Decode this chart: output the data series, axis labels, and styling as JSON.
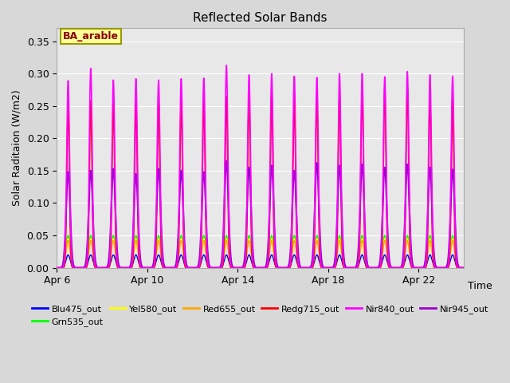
{
  "title": "Reflected Solar Bands",
  "xlabel": "Time",
  "ylabel": "Solar Raditaion (W/m2)",
  "annotation": "BA_arable",
  "annotation_color": "#8B0000",
  "annotation_bg": "#FFFF99",
  "annotation_border": "#999900",
  "ylim": [
    0,
    0.37
  ],
  "yticks": [
    0.0,
    0.05,
    0.1,
    0.15,
    0.2,
    0.25,
    0.3,
    0.35
  ],
  "bg_color": "#D8D8D8",
  "plot_bg_color": "#E8E8E8",
  "colors": {
    "Blu475_out": "#0000FF",
    "Grn535_out": "#00FF00",
    "Yel580_out": "#FFFF00",
    "Red655_out": "#FFA500",
    "Redg715_out": "#FF0000",
    "Nir840_out": "#FF00FF",
    "Nir945_out": "#9900CC"
  },
  "peaks": {
    "Blu475_out": 0.02,
    "Grn535_out": 0.05,
    "Yel580_out": 0.045,
    "Red655_out": 0.042,
    "Redg715_out": 0.26,
    "Nir840_out": 0.295,
    "Nir945_out": 0.155
  },
  "n_days": 18,
  "pts_per_day": 200,
  "day_tick_positions": [
    0,
    4,
    8,
    12,
    16
  ],
  "day_tick_labels": [
    "Apr 6",
    "Apr 10",
    "Apr 14",
    "Apr 18",
    "Apr 22"
  ],
  "nir840_day_peaks": [
    0.289,
    0.308,
    0.29,
    0.292,
    0.29,
    0.292,
    0.293,
    0.313,
    0.298,
    0.3,
    0.296,
    0.294,
    0.3,
    0.3,
    0.295,
    0.303,
    0.298,
    0.296
  ],
  "nir945_day_peaks": [
    0.148,
    0.15,
    0.153,
    0.145,
    0.153,
    0.15,
    0.148,
    0.165,
    0.155,
    0.158,
    0.15,
    0.162,
    0.158,
    0.16,
    0.155,
    0.16,
    0.155,
    0.152
  ],
  "redg715_day_peaks": [
    0.256,
    0.258,
    0.255,
    0.256,
    0.255,
    0.258,
    0.26,
    0.265,
    0.265,
    0.268,
    0.263,
    0.265,
    0.265,
    0.28,
    0.278,
    0.28,
    0.263,
    0.26
  ]
}
